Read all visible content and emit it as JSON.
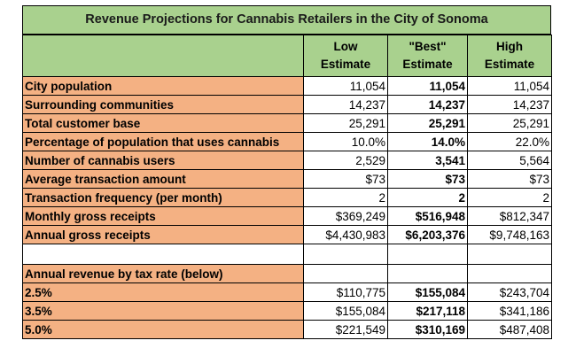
{
  "title": "Revenue Projections for Cannabis Retailers in the City of Sonoma",
  "columns": [
    "Low\nEstimate",
    "\"Best\"\nEstimate",
    "High\nEstimate"
  ],
  "rows": [
    {
      "label": "City population",
      "low": "11,054",
      "best": "11,054",
      "high": "11,054"
    },
    {
      "label": "Surrounding communities",
      "low": "14,237",
      "best": "14,237",
      "high": "14,237"
    },
    {
      "label": "Total customer base",
      "low": "25,291",
      "best": "25,291",
      "high": "25,291"
    },
    {
      "label": "Percentage of population that uses cannabis",
      "low": "10.0%",
      "best": "14.0%",
      "high": "22.0%"
    },
    {
      "label": "Number of cannabis users",
      "low": "2,529",
      "best": "3,541",
      "high": "5,564"
    },
    {
      "label": "Average transaction amount",
      "low": "$73",
      "best": "$73",
      "high": "$73"
    },
    {
      "label": "Transaction frequency (per month)",
      "low": "2",
      "best": "2",
      "high": "2"
    },
    {
      "label": "Monthly gross receipts",
      "low": "$369,249",
      "best": "$516,948",
      "high": "$812,347"
    },
    {
      "label": "Annual gross receipts",
      "low": "$4,430,983",
      "best": "$6,203,376",
      "high": "$9,748,163"
    }
  ],
  "section_label": "Annual revenue by tax rate (below)",
  "tax_rows": [
    {
      "label": "2.5%",
      "low": "$110,775",
      "best": "$155,084",
      "high": "$243,704"
    },
    {
      "label": "3.5%",
      "low": "$155,084",
      "best": "$217,118",
      "high": "$341,186"
    },
    {
      "label": "5.0%",
      "low": "$221,549",
      "best": "$310,169",
      "high": "$487,408"
    }
  ]
}
